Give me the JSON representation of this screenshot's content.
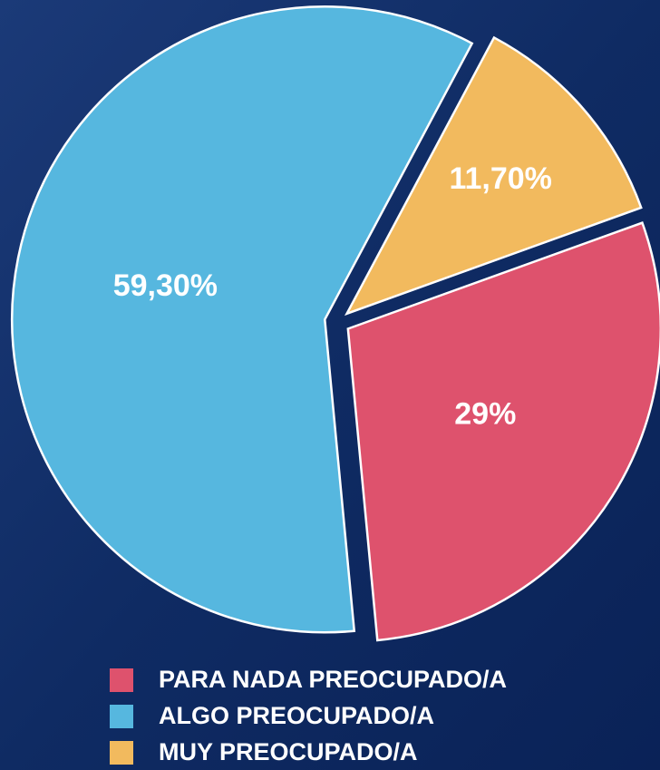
{
  "chart_data": {
    "type": "pie",
    "categories": [
      "PARA NADA PREOCUPADO/A",
      "ALGO PREOCUPADO/A",
      "MUY PREOCUPADO/A"
    ],
    "values": [
      29,
      59.3,
      11.7
    ],
    "value_labels": [
      "29%",
      "59,30%",
      "11,70%"
    ],
    "colors": [
      "#de526d",
      "#56b7df",
      "#f2ba5e"
    ],
    "legend": "bottom"
  }
}
